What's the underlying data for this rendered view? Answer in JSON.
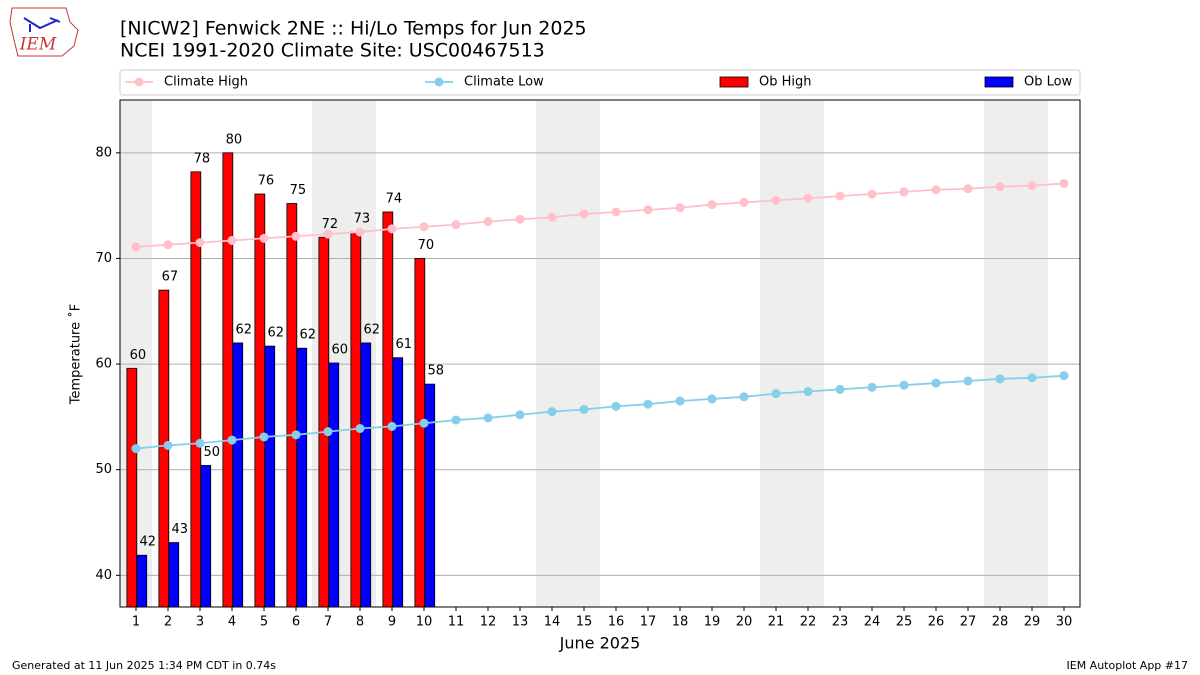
{
  "chart_data": {
    "type": "bar_line",
    "logo_text": "IEM",
    "title": "[NICW2] Fenwick 2NE :: Hi/Lo Temps for Jun 2025",
    "subtitle": "NCEI 1991-2020 Climate Site: USC00467513",
    "x_label": "June 2025",
    "y_label": "Temperature ˚F",
    "footer_left": "Generated at 11 Jun 2025 1:34 PM CDT in 0.74s",
    "footer_right": "IEM Autoplot App #17",
    "x": [
      1,
      2,
      3,
      4,
      5,
      6,
      7,
      8,
      9,
      10,
      11,
      12,
      13,
      14,
      15,
      16,
      17,
      18,
      19,
      20,
      21,
      22,
      23,
      24,
      25,
      26,
      27,
      28,
      29,
      30
    ],
    "xlim": [
      0.5,
      30.5
    ],
    "xticks": [
      1,
      2,
      3,
      4,
      5,
      6,
      7,
      8,
      9,
      10,
      11,
      12,
      13,
      14,
      15,
      16,
      17,
      18,
      19,
      20,
      21,
      22,
      23,
      24,
      25,
      26,
      27,
      28,
      29,
      30
    ],
    "ylim": [
      37,
      85
    ],
    "yticks": [
      40,
      50,
      60,
      70,
      80
    ],
    "grid": true,
    "weekend_shading": {
      "days": [
        1,
        7,
        8,
        14,
        15,
        21,
        22,
        28,
        29
      ],
      "color": "#eeeeee"
    },
    "series": [
      {
        "name": "Climate High",
        "type": "line",
        "color": "#ffc0cb",
        "values": [
          71.1,
          71.3,
          71.5,
          71.7,
          71.9,
          72.1,
          72.3,
          72.5,
          72.8,
          73.0,
          73.2,
          73.5,
          73.7,
          73.9,
          74.2,
          74.4,
          74.6,
          74.8,
          75.1,
          75.3,
          75.5,
          75.7,
          75.9,
          76.1,
          76.3,
          76.5,
          76.6,
          76.8,
          76.9,
          77.1
        ]
      },
      {
        "name": "Climate Low",
        "type": "line",
        "color": "#87ceeb",
        "values": [
          52.0,
          52.3,
          52.5,
          52.8,
          53.1,
          53.3,
          53.6,
          53.9,
          54.1,
          54.4,
          54.7,
          54.9,
          55.2,
          55.5,
          55.7,
          56.0,
          56.2,
          56.5,
          56.7,
          56.9,
          57.2,
          57.4,
          57.6,
          57.8,
          58.0,
          58.2,
          58.4,
          58.6,
          58.7,
          58.9
        ]
      },
      {
        "name": "Ob High",
        "type": "bar",
        "color": "#ff0000",
        "values": [
          59.6,
          67,
          78.2,
          80,
          76.1,
          75.2,
          72,
          72.5,
          74.4,
          70,
          null,
          null,
          null,
          null,
          null,
          null,
          null,
          null,
          null,
          null,
          null,
          null,
          null,
          null,
          null,
          null,
          null,
          null,
          null,
          null
        ],
        "value_labels": [
          "60",
          "67",
          "78",
          "80",
          "76",
          "75",
          "72",
          "73",
          "74",
          "70",
          null,
          null,
          null,
          null,
          null,
          null,
          null,
          null,
          null,
          null,
          null,
          null,
          null,
          null,
          null,
          null,
          null,
          null,
          null,
          null
        ]
      },
      {
        "name": "Ob Low",
        "type": "bar",
        "color": "#0000ff",
        "values": [
          41.9,
          43.1,
          50.4,
          62,
          61.7,
          61.5,
          60.1,
          62,
          60.6,
          58.1,
          null,
          null,
          null,
          null,
          null,
          null,
          null,
          null,
          null,
          null,
          null,
          null,
          null,
          null,
          null,
          null,
          null,
          null,
          null,
          null
        ],
        "value_labels": [
          "42",
          "43",
          "50",
          "62",
          "62",
          "62",
          "60",
          "62",
          "61",
          "58",
          null,
          null,
          null,
          null,
          null,
          null,
          null,
          null,
          null,
          null,
          null,
          null,
          null,
          null,
          null,
          null,
          null,
          null,
          null,
          null
        ]
      }
    ]
  }
}
